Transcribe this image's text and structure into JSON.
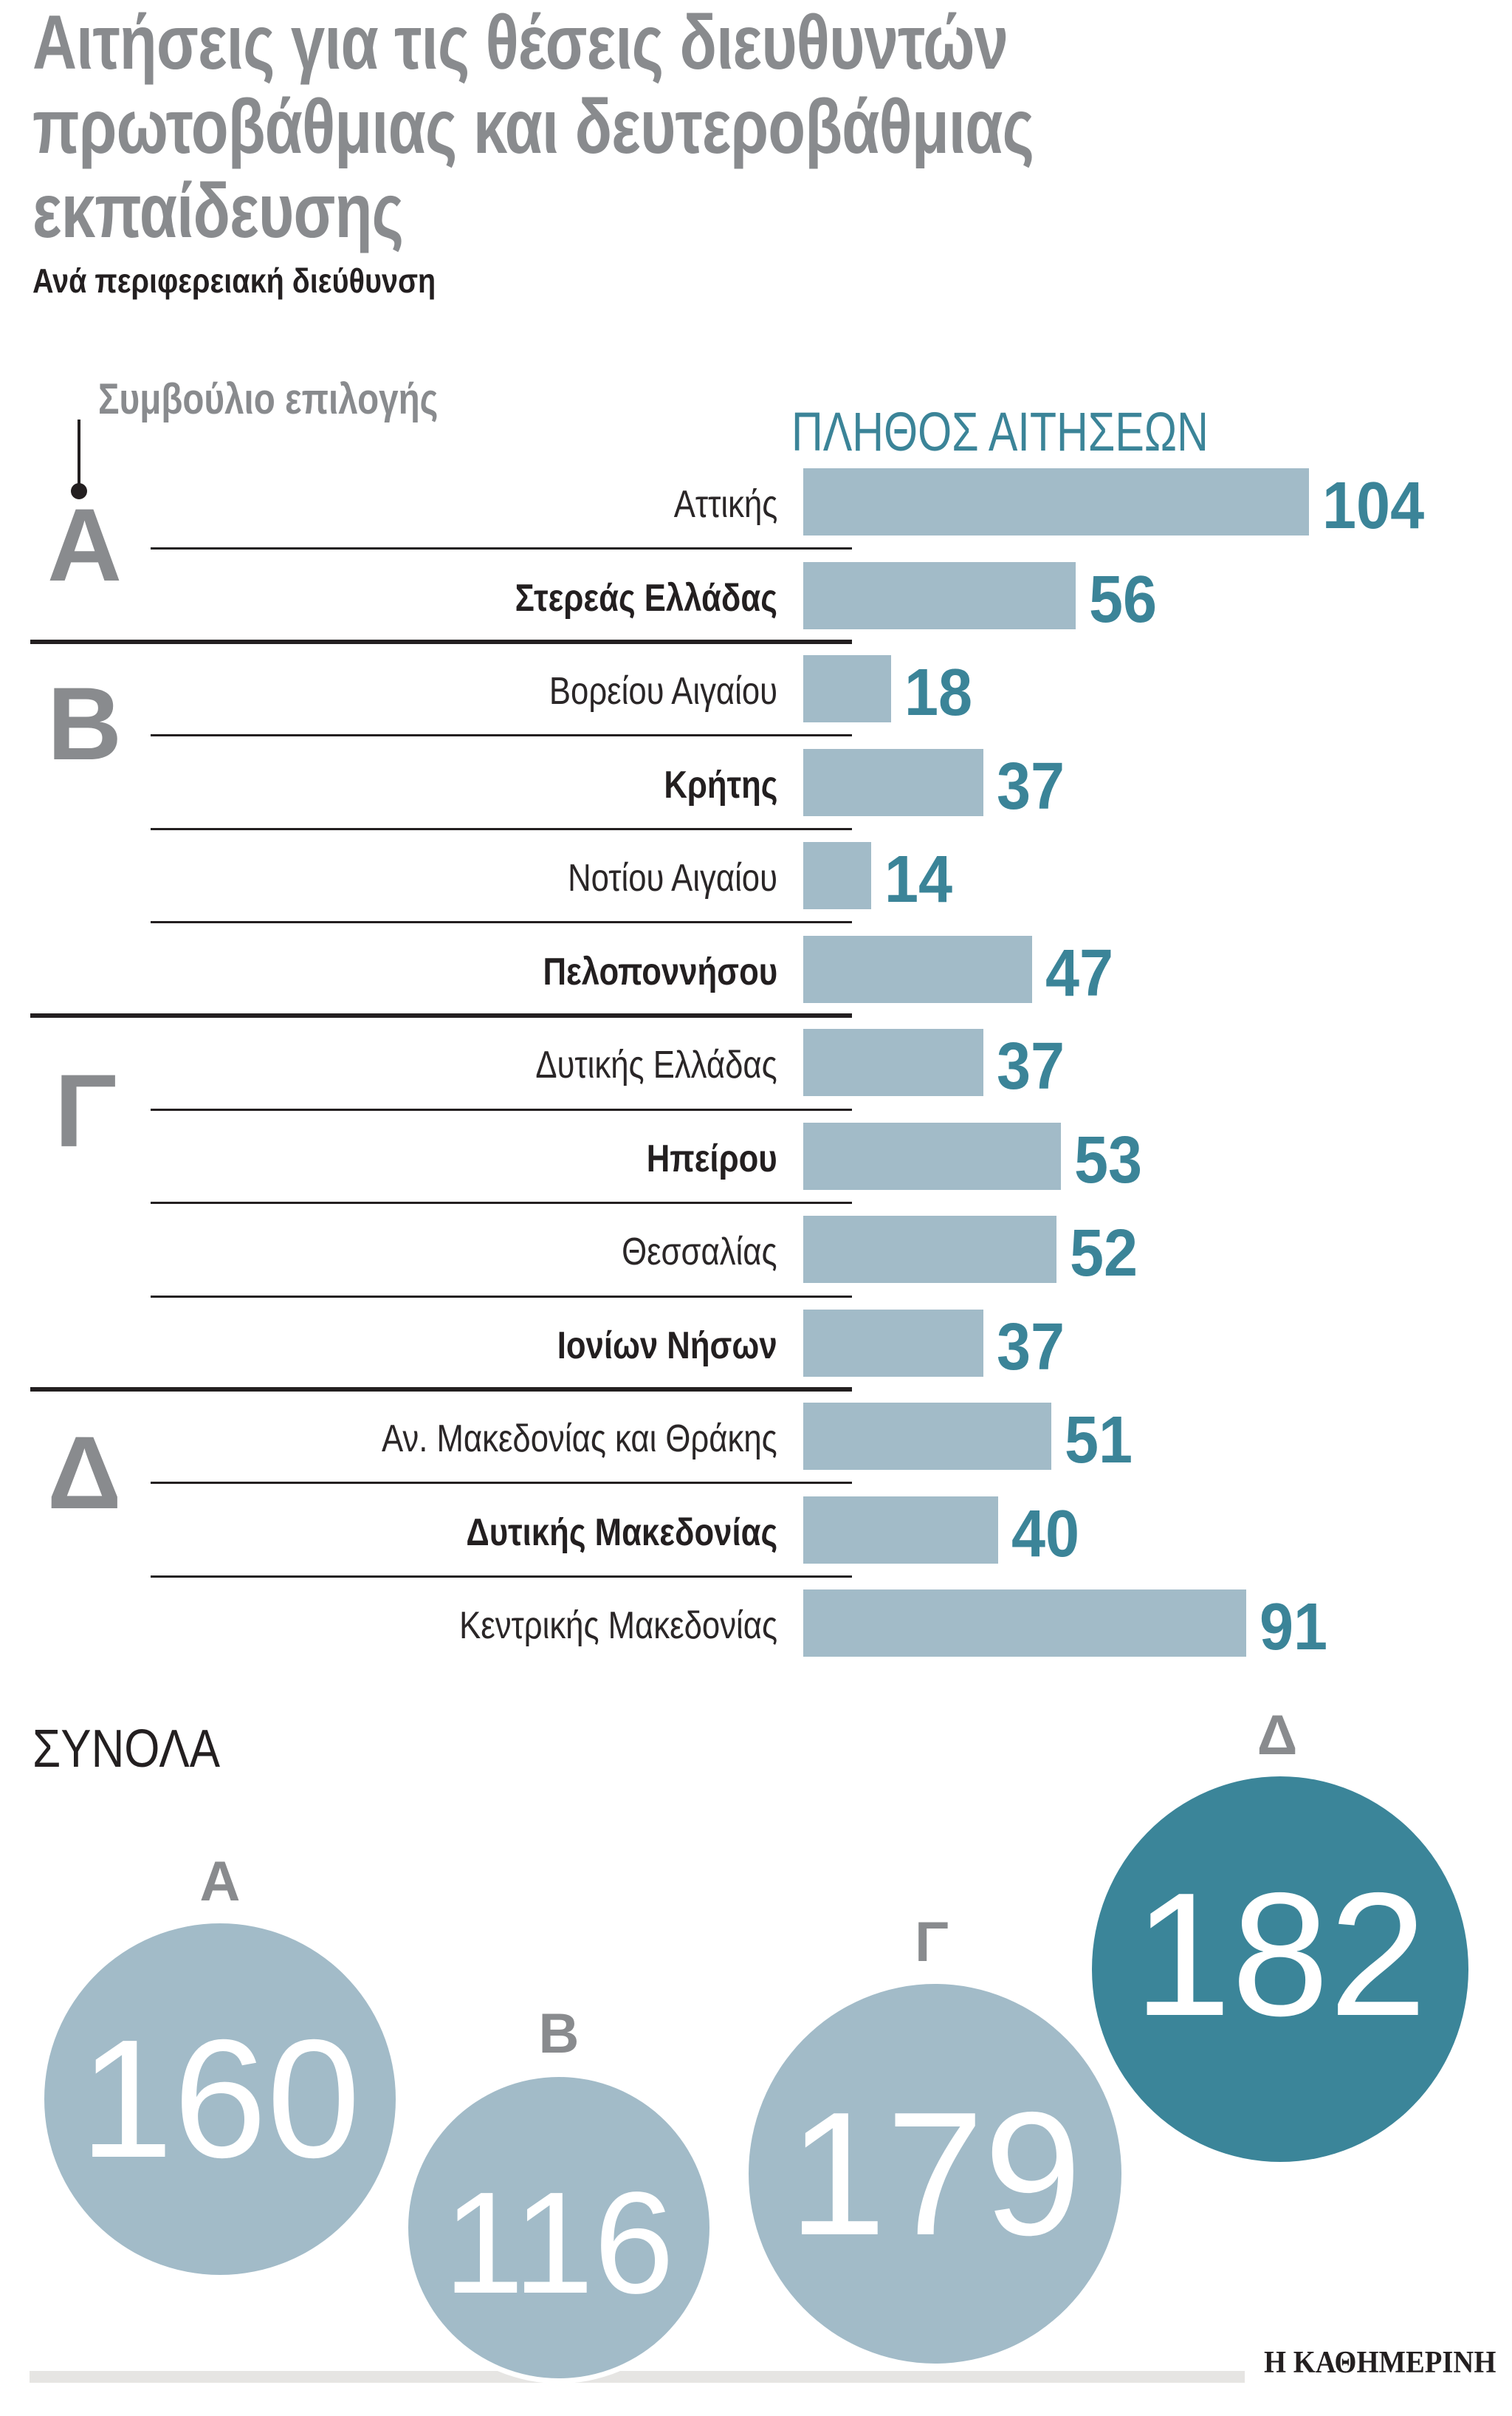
{
  "header": {
    "title_lines": [
      "Αιτήσεις για τις θέσεις διευθυντών",
      "πρωτοβάθμιας και δευτεροβάθμιας",
      "εκπαίδευσης"
    ],
    "subtitle": "Ανά περιφερειακή διεύθυνση"
  },
  "legend": {
    "council_label": "Συμβούλιο επιλογής",
    "count_header": "ΠΛΗΘΟΣ ΑΙΤΗΣΕΩΝ"
  },
  "groups": [
    {
      "letter": "Α",
      "rows": [
        0,
        1
      ]
    },
    {
      "letter": "Β",
      "rows": [
        2,
        3,
        4,
        5
      ]
    },
    {
      "letter": "Γ",
      "rows": [
        6,
        7,
        8,
        9
      ]
    },
    {
      "letter": "Δ",
      "rows": [
        10,
        11,
        12
      ]
    }
  ],
  "rows": [
    {
      "label": "Αττικής",
      "value": "104",
      "weight": "light"
    },
    {
      "label": "Στερεάς Ελλάδας",
      "value": "56",
      "weight": "bold"
    },
    {
      "label": "Βορείου Αιγαίου",
      "value": "18",
      "weight": "light"
    },
    {
      "label": "Κρήτης",
      "value": "37",
      "weight": "bold"
    },
    {
      "label": "Νοτίου Αιγαίου",
      "value": "14",
      "weight": "light"
    },
    {
      "label": "Πελοποννήσου",
      "value": "47",
      "weight": "bold"
    },
    {
      "label": "Δυτικής Ελλάδας",
      "value": "37",
      "weight": "light"
    },
    {
      "label": "Ηπείρου",
      "value": "53",
      "weight": "bold"
    },
    {
      "label": "Θεσσαλίας",
      "value": "52",
      "weight": "light"
    },
    {
      "label": "Ιονίων Νήσων",
      "value": "37",
      "weight": "bold"
    },
    {
      "label": "Αν. Μακεδονίας και Θράκης",
      "value": "51",
      "weight": "light"
    },
    {
      "label": "Δυτικής Μακεδονίας",
      "value": "40",
      "weight": "bold"
    },
    {
      "label": "Κεντρικής Μακεδονίας",
      "value": "91",
      "weight": "light"
    }
  ],
  "totals": {
    "title": "ΣΥΝΟΛΑ",
    "bubbles": [
      {
        "label": "Α",
        "value": "160"
      },
      {
        "label": "Β",
        "value": "116"
      },
      {
        "label": "Γ",
        "value": "179"
      },
      {
        "label": "Δ",
        "value": "182"
      }
    ]
  },
  "footer": {
    "logo": "Η ΚΑΘΗΜΕΡΙΝΗ"
  },
  "colors": {
    "bar": "#a2bbc8",
    "value_text": "#3b8498",
    "highlight_bubble": "#3b8599",
    "group_letter": "#898b8e",
    "title": "#898b8e"
  },
  "chart_data": [
    {
      "type": "bar",
      "orientation": "horizontal",
      "title": "Αιτήσεις για τις θέσεις διευθυντών πρωτοβάθμιας και δευτεροβάθμιας εκπαίδευσης",
      "subtitle": "Ανά περιφερειακή διεύθυνση",
      "xlabel": "ΠΛΗΘΟΣ ΑΙΤΗΣΕΩΝ",
      "ylabel": "Συμβούλιο επιλογής",
      "categories": [
        "Αττικής",
        "Στερεάς Ελλάδας",
        "Βορείου Αιγαίου",
        "Κρήτης",
        "Νοτίου Αιγαίου",
        "Πελοποννήσου",
        "Δυτικής Ελλάδας",
        "Ηπείρου",
        "Θεσσαλίας",
        "Ιονίων Νήσων",
        "Αν. Μακεδονίας και Θράκης",
        "Δυτικής Μακεδονίας",
        "Κεντρικής Μακεδονίας"
      ],
      "values": [
        104,
        56,
        18,
        37,
        14,
        47,
        37,
        53,
        52,
        37,
        51,
        40,
        91
      ],
      "groups": {
        "Α": [
          "Αττικής",
          "Στερεάς Ελλάδας"
        ],
        "Β": [
          "Βορείου Αιγαίου",
          "Κρήτης",
          "Νοτίου Αιγαίου",
          "Πελοποννήσου"
        ],
        "Γ": [
          "Δυτικής Ελλάδας",
          "Ηπείρου",
          "Θεσσαλίας",
          "Ιονίων Νήσων"
        ],
        "Δ": [
          "Αν. Μακεδονίας και Θράκης",
          "Δυτικής Μακεδονίας",
          "Κεντρικής Μακεδονίας"
        ]
      },
      "data_labels": true,
      "grid": false
    },
    {
      "type": "bubble",
      "title": "ΣΥΝΟΛΑ",
      "categories": [
        "Α",
        "Β",
        "Γ",
        "Δ"
      ],
      "values": [
        160,
        116,
        179,
        182
      ],
      "highlight": "Δ"
    }
  ]
}
